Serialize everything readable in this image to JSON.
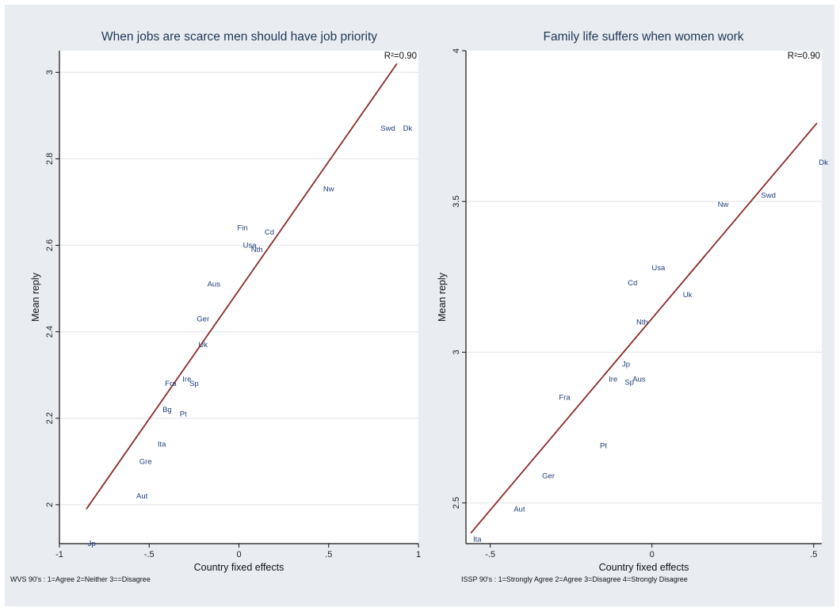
{
  "chart_data": [
    {
      "type": "scatter",
      "title": "When jobs are scarce men should have job priority",
      "xlabel": "Country fixed effects",
      "ylabel": "Mean reply",
      "xlim": [
        -1.0,
        1.0
      ],
      "ylim": [
        1.91,
        3.05
      ],
      "xticks": [
        -1,
        -0.5,
        0,
        0.5,
        1
      ],
      "xtick_labels": [
        "-1",
        "-.5",
        "0",
        ".5",
        "1"
      ],
      "yticks": [
        2,
        2.2,
        2.4,
        2.6,
        2.8,
        3
      ],
      "ytick_labels": [
        "2",
        "2.2",
        "2.4",
        "2.6",
        "2.8",
        "3"
      ],
      "r2_label": "R²=0.90",
      "note": "WVS 90's : 1=Agree  2=Neither  3==Disagree",
      "fit_line": {
        "x": [
          -0.85,
          0.88
        ],
        "y": [
          1.99,
          3.02
        ]
      },
      "points": [
        {
          "label": "Jp",
          "x": -0.82,
          "y": 1.91
        },
        {
          "label": "Aut",
          "x": -0.54,
          "y": 2.02
        },
        {
          "label": "Gre",
          "x": -0.52,
          "y": 2.1
        },
        {
          "label": "Ita",
          "x": -0.43,
          "y": 2.14
        },
        {
          "label": "Bg",
          "x": -0.4,
          "y": 2.22
        },
        {
          "label": "Pt",
          "x": -0.31,
          "y": 2.21
        },
        {
          "label": "Fra",
          "x": -0.38,
          "y": 2.28
        },
        {
          "label": "Ire",
          "x": -0.29,
          "y": 2.29
        },
        {
          "label": "Sp",
          "x": -0.25,
          "y": 2.28
        },
        {
          "label": "Uk",
          "x": -0.2,
          "y": 2.37
        },
        {
          "label": "Ger",
          "x": -0.2,
          "y": 2.43
        },
        {
          "label": "Aus",
          "x": -0.14,
          "y": 2.51
        },
        {
          "label": "Nth",
          "x": 0.1,
          "y": 2.59
        },
        {
          "label": "Usa",
          "x": 0.06,
          "y": 2.6
        },
        {
          "label": "Fin",
          "x": 0.02,
          "y": 2.64
        },
        {
          "label": "Cd",
          "x": 0.17,
          "y": 2.63
        },
        {
          "label": "Nw",
          "x": 0.5,
          "y": 2.73
        },
        {
          "label": "Swd",
          "x": 0.83,
          "y": 2.87
        },
        {
          "label": "Dk",
          "x": 0.94,
          "y": 2.87
        }
      ]
    },
    {
      "type": "scatter",
      "title": "Family life suffers when women work",
      "xlabel": "Country fixed effects",
      "ylabel": "Mean reply",
      "xlim": [
        -0.575,
        0.525
      ],
      "ylim": [
        2.365,
        4.0
      ],
      "xticks": [
        -0.5,
        0,
        0.5
      ],
      "xtick_labels": [
        "-.5",
        "0",
        ".5"
      ],
      "yticks": [
        2.5,
        3,
        3.5,
        4
      ],
      "ytick_labels": [
        "2.5",
        "3",
        "3.5",
        "4"
      ],
      "r2_label": "R²=0.90",
      "note": "ISSP 90's : 1=Strongly Agree  2=Agree  3=Disagree  4=Strongly Disagree",
      "fit_line": {
        "x": [
          -0.56,
          0.51
        ],
        "y": [
          2.4,
          3.76
        ]
      },
      "points": [
        {
          "label": "Ita",
          "x": -0.54,
          "y": 2.38
        },
        {
          "label": "Aut",
          "x": -0.41,
          "y": 2.48
        },
        {
          "label": "Ger",
          "x": -0.32,
          "y": 2.59
        },
        {
          "label": "Pt",
          "x": -0.15,
          "y": 2.69
        },
        {
          "label": "Fra",
          "x": -0.27,
          "y": 2.85
        },
        {
          "label": "Ire",
          "x": -0.12,
          "y": 2.91
        },
        {
          "label": "Sp",
          "x": -0.07,
          "y": 2.9
        },
        {
          "label": "Aus",
          "x": -0.04,
          "y": 2.91
        },
        {
          "label": "Jp",
          "x": -0.08,
          "y": 2.96
        },
        {
          "label": "Nth",
          "x": -0.03,
          "y": 3.1
        },
        {
          "label": "Cd",
          "x": -0.06,
          "y": 3.23
        },
        {
          "label": "Usa",
          "x": 0.02,
          "y": 3.28
        },
        {
          "label": "Uk",
          "x": 0.11,
          "y": 3.19
        },
        {
          "label": "Nw",
          "x": 0.22,
          "y": 3.49
        },
        {
          "label": "Swd",
          "x": 0.36,
          "y": 3.52
        },
        {
          "label": "Dk",
          "x": 0.53,
          "y": 3.63
        }
      ]
    }
  ]
}
